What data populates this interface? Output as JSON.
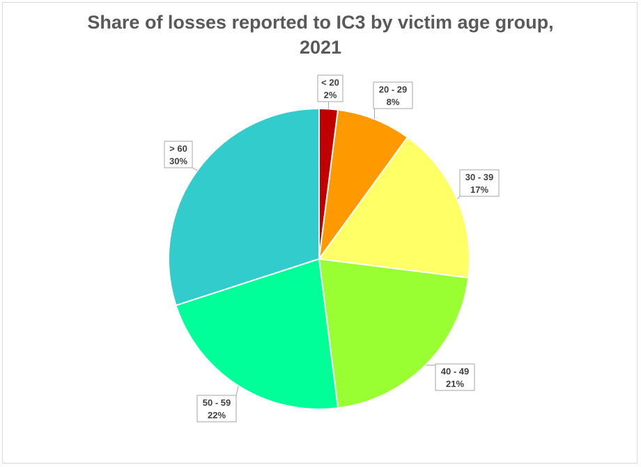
{
  "chart_data": {
    "type": "pie",
    "title": "Share of losses reported to IC3 by victim age group,\n2021",
    "categories": [
      "< 20",
      "20 - 29",
      "30 - 39",
      "40 - 49",
      "50 - 59",
      "> 60"
    ],
    "values": [
      2,
      8,
      17,
      21,
      22,
      30
    ],
    "value_labels": [
      "2%",
      "8%",
      "17%",
      "21%",
      "22%",
      "30%"
    ],
    "colors": [
      "#c00000",
      "#ff9900",
      "#ffff66",
      "#99ff33",
      "#00ff99",
      "#33cccc"
    ],
    "start": "12 o'clock, clockwise",
    "legend": "none"
  }
}
